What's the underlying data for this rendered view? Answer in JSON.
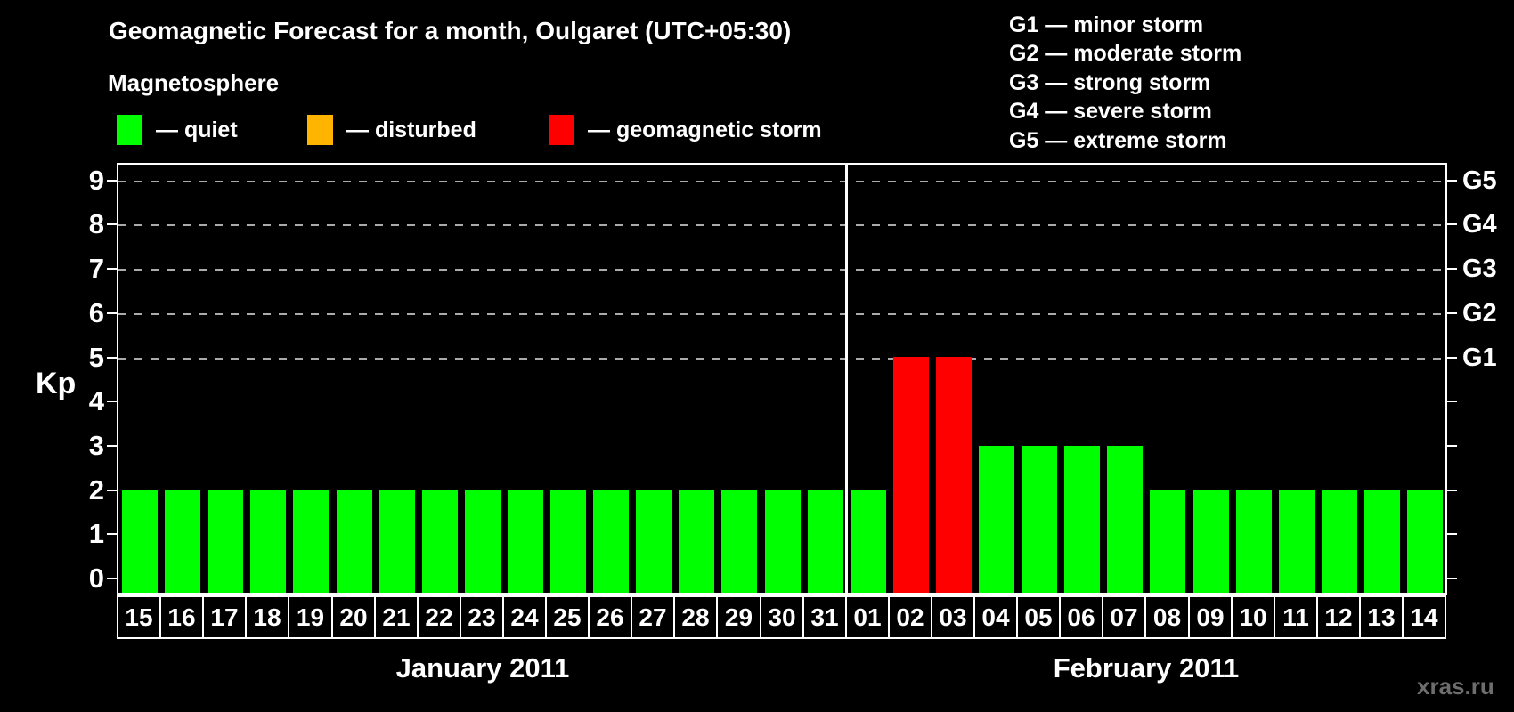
{
  "title": "Geomagnetic Forecast for a month, Oulgaret (UTC+05:30)",
  "watermark": "xras.ru",
  "colors": {
    "quiet": "#00ff00",
    "disturbed": "#ffb400",
    "storm": "#ff0000",
    "background": "#000000",
    "axis": "#ffffff",
    "grid": "#aaaaaa",
    "text": "#ffffff",
    "watermark": "#6d6d6d"
  },
  "legend": {
    "heading": "Magnetosphere",
    "items": [
      {
        "state": "quiet",
        "label": "— quiet",
        "color": "#00ff00"
      },
      {
        "state": "disturbed",
        "label": "— disturbed",
        "color": "#ffb400"
      },
      {
        "state": "storm",
        "label": "— geomagnetic storm",
        "color": "#ff0000"
      }
    ]
  },
  "g_scale_legend": [
    "G1 — minor storm",
    "G2 — moderate storm",
    "G3 — strong storm",
    "G4 — severe storm",
    "G5 — extreme storm"
  ],
  "chart_data": {
    "type": "bar",
    "title": "Geomagnetic Forecast for a month, Oulgaret (UTC+05:30)",
    "ylabel": "Kp",
    "xlabel": "",
    "ylim": [
      0,
      9
    ],
    "yticks": [
      0,
      1,
      2,
      3,
      4,
      5,
      6,
      7,
      8,
      9
    ],
    "grid_kp_levels": [
      5,
      6,
      7,
      8,
      9
    ],
    "grid_style": "dashed",
    "legend_position": "top-left",
    "right_axis": [
      {
        "kp": 5,
        "label": "G1"
      },
      {
        "kp": 6,
        "label": "G2"
      },
      {
        "kp": 7,
        "label": "G3"
      },
      {
        "kp": 8,
        "label": "G4"
      },
      {
        "kp": 9,
        "label": "G5"
      }
    ],
    "months": [
      {
        "label": "January 2011",
        "points": [
          {
            "day": "15",
            "kp": 2,
            "state": "quiet"
          },
          {
            "day": "16",
            "kp": 2,
            "state": "quiet"
          },
          {
            "day": "17",
            "kp": 2,
            "state": "quiet"
          },
          {
            "day": "18",
            "kp": 2,
            "state": "quiet"
          },
          {
            "day": "19",
            "kp": 2,
            "state": "quiet"
          },
          {
            "day": "20",
            "kp": 2,
            "state": "quiet"
          },
          {
            "day": "21",
            "kp": 2,
            "state": "quiet"
          },
          {
            "day": "22",
            "kp": 2,
            "state": "quiet"
          },
          {
            "day": "23",
            "kp": 2,
            "state": "quiet"
          },
          {
            "day": "24",
            "kp": 2,
            "state": "quiet"
          },
          {
            "day": "25",
            "kp": 2,
            "state": "quiet"
          },
          {
            "day": "26",
            "kp": 2,
            "state": "quiet"
          },
          {
            "day": "27",
            "kp": 2,
            "state": "quiet"
          },
          {
            "day": "28",
            "kp": 2,
            "state": "quiet"
          },
          {
            "day": "29",
            "kp": 2,
            "state": "quiet"
          },
          {
            "day": "30",
            "kp": 2,
            "state": "quiet"
          },
          {
            "day": "31",
            "kp": 2,
            "state": "quiet"
          }
        ]
      },
      {
        "label": "February 2011",
        "points": [
          {
            "day": "01",
            "kp": 2,
            "state": "quiet"
          },
          {
            "day": "02",
            "kp": 5,
            "state": "storm"
          },
          {
            "day": "03",
            "kp": 5,
            "state": "storm"
          },
          {
            "day": "04",
            "kp": 3,
            "state": "quiet"
          },
          {
            "day": "05",
            "kp": 3,
            "state": "quiet"
          },
          {
            "day": "06",
            "kp": 3,
            "state": "quiet"
          },
          {
            "day": "07",
            "kp": 3,
            "state": "quiet"
          },
          {
            "day": "08",
            "kp": 2,
            "state": "quiet"
          },
          {
            "day": "09",
            "kp": 2,
            "state": "quiet"
          },
          {
            "day": "10",
            "kp": 2,
            "state": "quiet"
          },
          {
            "day": "11",
            "kp": 2,
            "state": "quiet"
          },
          {
            "day": "12",
            "kp": 2,
            "state": "quiet"
          },
          {
            "day": "13",
            "kp": 2,
            "state": "quiet"
          },
          {
            "day": "14",
            "kp": 2,
            "state": "quiet"
          }
        ]
      }
    ]
  }
}
